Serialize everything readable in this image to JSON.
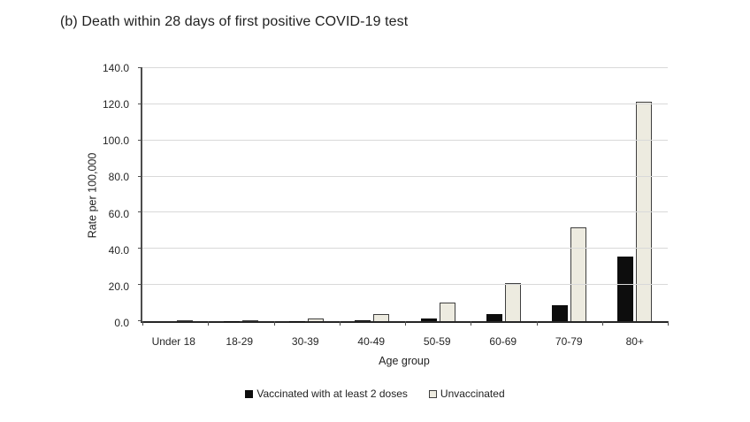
{
  "title": "(b) Death within 28 days of first positive COVID-19 test",
  "chart_data": {
    "type": "bar",
    "title": "(b) Death within 28 days of first positive COVID-19 test",
    "categories": [
      "Under 18",
      "18-29",
      "30-39",
      "40-49",
      "50-59",
      "60-69",
      "70-79",
      "80+"
    ],
    "series": [
      {
        "name": "Vaccinated with at least 2 doses",
        "color": "#0d0d0d",
        "values": [
          0.0,
          0.1,
          0.2,
          0.6,
          1.5,
          3.9,
          9.0,
          35.8
        ]
      },
      {
        "name": "Unvaccinated",
        "color": "#edebe0",
        "border_color": "#3f3f3f",
        "values": [
          0.1,
          0.6,
          1.3,
          3.7,
          10.4,
          21.0,
          52.0,
          121.5
        ]
      }
    ],
    "xlabel": "Age group",
    "ylabel": "Rate per 100,000",
    "ylim": [
      0,
      140
    ],
    "ytick_step": 20,
    "yticks": [
      "0.0",
      "20.0",
      "40.0",
      "60.0",
      "80.0",
      "100.0",
      "120.0",
      "140.0"
    ],
    "grid": true,
    "legend_position": "bottom"
  },
  "colors": {
    "background": "#ffffff",
    "gridline": "#d9d9d9",
    "axis": "#4d4d4d",
    "text": "#262626",
    "bar_vaccinated": "#0d0d0d",
    "bar_unvaccinated_fill": "#edebe0",
    "bar_unvaccinated_border": "#3f3f3f"
  }
}
